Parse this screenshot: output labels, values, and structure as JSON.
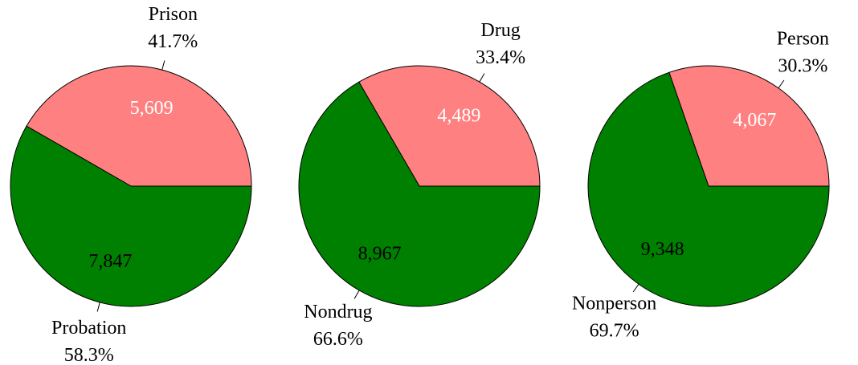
{
  "chart_data": [
    {
      "type": "pie",
      "categories": [
        "Prison",
        "Probation"
      ],
      "values": [
        5609,
        7847
      ],
      "value_labels": [
        "5,609",
        "7,847"
      ],
      "percent_labels": [
        "41.7%",
        "58.3%"
      ],
      "colors": [
        "#ff8080",
        "#008000"
      ]
    },
    {
      "type": "pie",
      "categories": [
        "Drug",
        "Nondrug"
      ],
      "values": [
        4489,
        8967
      ],
      "value_labels": [
        "4,489",
        "8,967"
      ],
      "percent_labels": [
        "33.4%",
        "66.6%"
      ],
      "colors": [
        "#ff8080",
        "#008000"
      ]
    },
    {
      "type": "pie",
      "categories": [
        "Person",
        "Nonperson"
      ],
      "values": [
        4067,
        9348
      ],
      "value_labels": [
        "4,067",
        "9,348"
      ],
      "percent_labels": [
        "30.3%",
        "69.7%"
      ],
      "colors": [
        "#ff8080",
        "#008000"
      ]
    }
  ]
}
